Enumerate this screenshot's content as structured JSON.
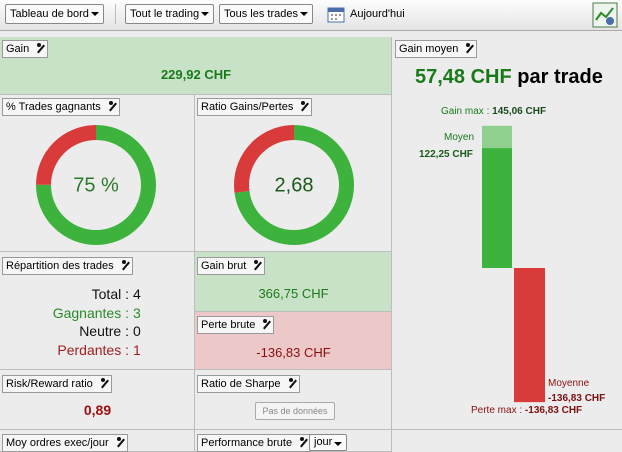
{
  "toolbar": {
    "dashboard": "Tableau de bord",
    "trading": "Tout le trading",
    "trades": "Tous les trades",
    "period": "Aujourd'hui"
  },
  "panels": {
    "gain": {
      "title": "Gain",
      "value": "229,92 CHF"
    },
    "win_rate": {
      "title": "% Trades gagnants",
      "value": {
        "value": 75,
        "label": "75 %"
      }
    },
    "win_loss_ratio": {
      "title": "Ratio Gains/Pertes",
      "value": {
        "value": 2.68,
        "label": "2,68"
      }
    },
    "distribution": {
      "title": "Répartition des trades",
      "rows": [
        {
          "label": "Total :",
          "value": 4
        },
        {
          "label": "Gagnantes :",
          "value": 3
        },
        {
          "label": "Neutre :",
          "value": 0
        },
        {
          "label": "Perdantes :",
          "value": 1
        }
      ]
    },
    "gross_gain": {
      "title": "Gain brut",
      "value": "366,75 CHF"
    },
    "gross_loss": {
      "title": "Perte brute",
      "value": "-136,83 CHF"
    },
    "risk_reward": {
      "title": "Risk/Reward ratio",
      "value": "0,89"
    },
    "sharpe": {
      "title": "Ratio de Sharpe",
      "button": "Pas de données"
    },
    "orders": {
      "title": "Moy ordres exec/jour"
    },
    "performance": {
      "title": "Performance brute",
      "period": "jour"
    },
    "average_gain": {
      "title": "Gain moyen",
      "headline": "57,48 CHF",
      "headline_suffix": "par trade",
      "max_label": "Gain max :",
      "max": {
        "value": 145.06,
        "label": "145,06 CHF"
      },
      "avg_gain_label": "Moyen",
      "avg_gain": {
        "value": 122.25,
        "label": "122,25 CHF"
      },
      "avg_loss_label": "Moyenne",
      "avg_loss": {
        "value": -136.83,
        "label": "-136,83 CHF"
      },
      "min_label": "Perte max :",
      "min": {
        "value": -136.83,
        "label": "-136,83 CHF"
      }
    }
  }
}
